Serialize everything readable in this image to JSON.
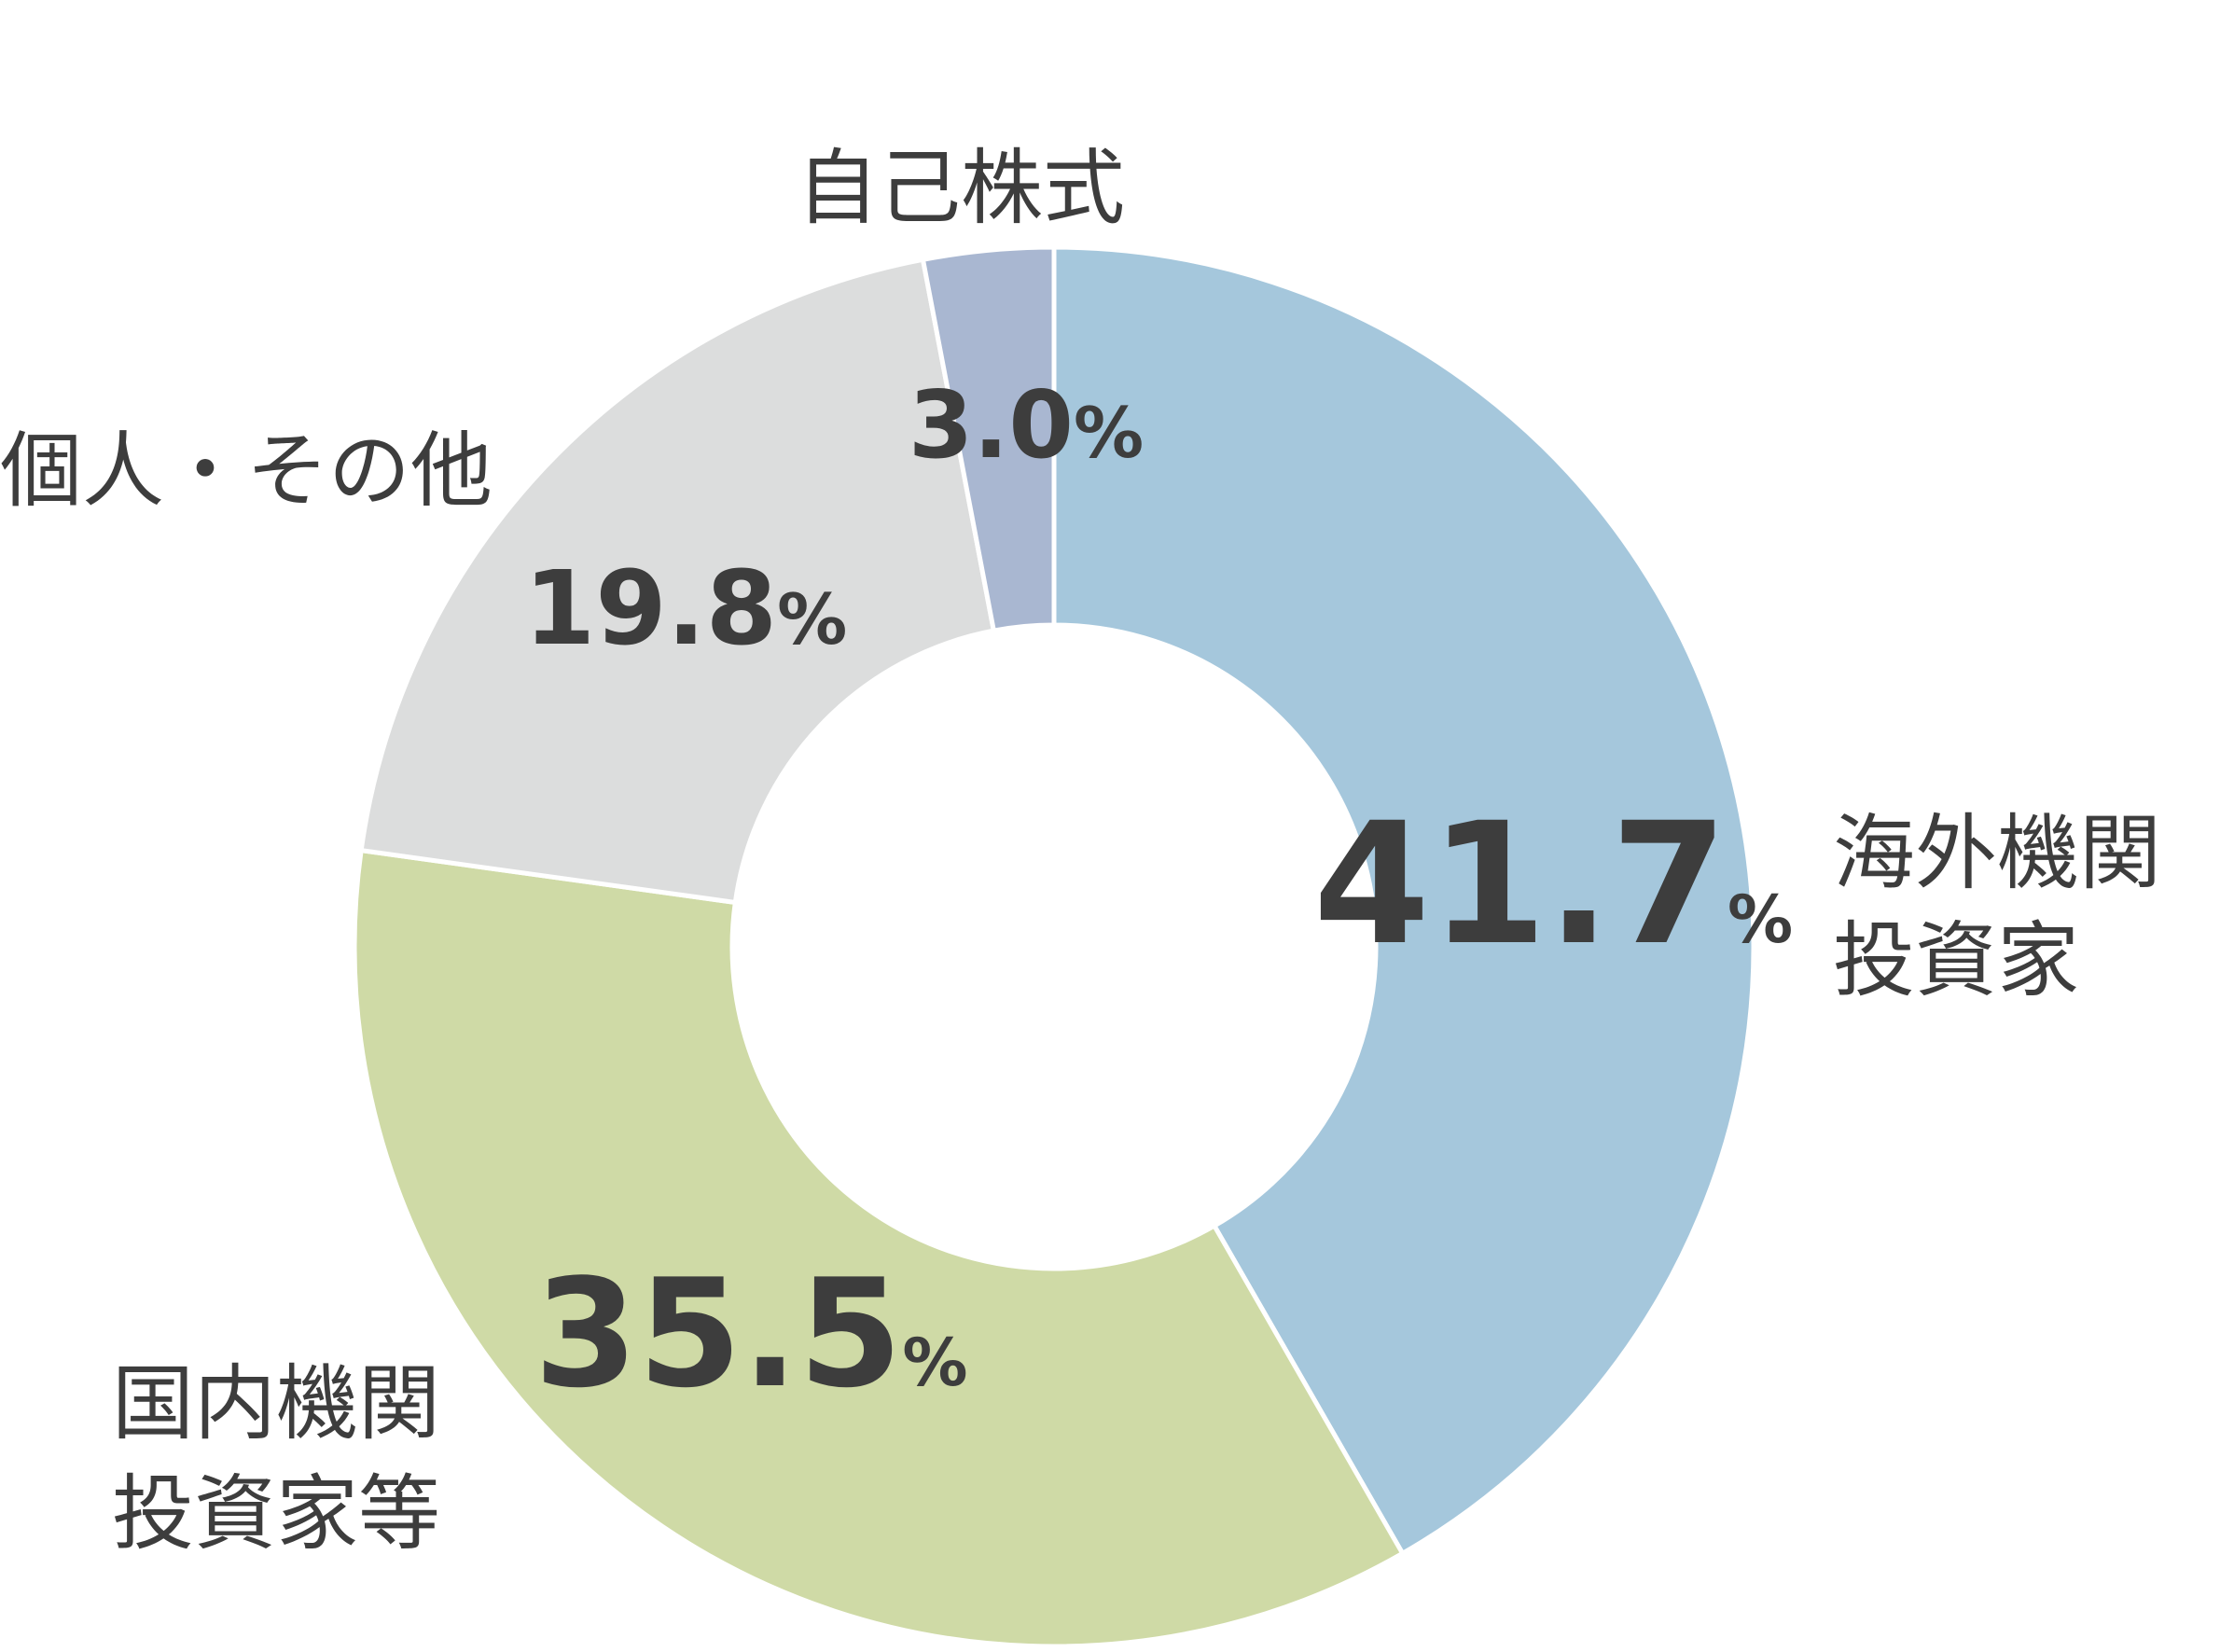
{
  "chart_data": {
    "type": "pie",
    "donut": true,
    "start_angle_deg": 0,
    "direction": "clockwise",
    "unit": "%",
    "slices": [
      {
        "label_lines": [
          "海外機関",
          "投資家"
        ],
        "value": 41.7,
        "value_text": "41.7",
        "color": "#a5c7dc"
      },
      {
        "label_lines": [
          "国内機関",
          "投資家等"
        ],
        "value": 35.5,
        "value_text": "35.5",
        "color": "#cfdaa6"
      },
      {
        "label_lines": [
          "個人・その他"
        ],
        "value": 19.8,
        "value_text": "19.8",
        "color": "#dcdddd"
      },
      {
        "label_lines": [
          "自己株式"
        ],
        "value": 3.0,
        "value_text": "3.0",
        "color": "#a9b7d1"
      }
    ],
    "legend": "none"
  }
}
